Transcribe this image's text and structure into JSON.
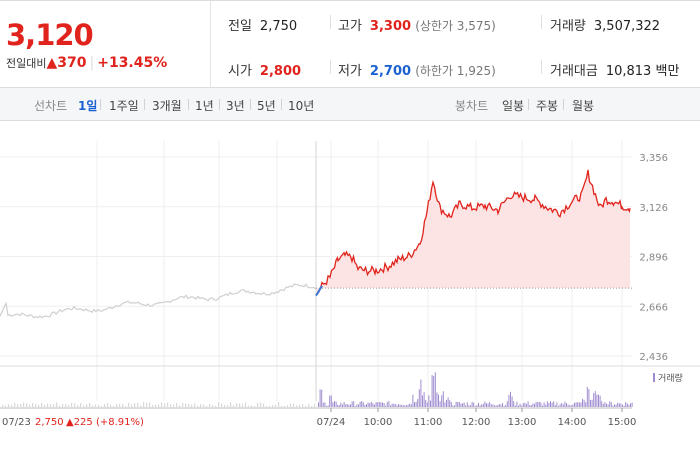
{
  "quote": {
    "price": "3,120",
    "change_label": "전일대비",
    "change_arrow": "▲",
    "change_value": "370",
    "change_pct": "+13.45%",
    "prev_close_label": "전일",
    "prev_close": "2,750",
    "open_label": "시가",
    "open": "2,800",
    "high_label": "고가",
    "high": "3,300",
    "upper_limit": "(상한가 3,575)",
    "low_label": "저가",
    "low": "2,700",
    "lower_limit": "(하한가 1,925)",
    "volume_label": "거래량",
    "volume": "3,507,322",
    "amount_label": "거래대금",
    "amount": "10,813",
    "amount_unit": "백만"
  },
  "tabs": {
    "line_label": "선차트",
    "line_periods": [
      "1일",
      "1주일",
      "3개월",
      "1년",
      "3년",
      "5년",
      "10년"
    ],
    "candle_label": "봉차트",
    "candle_periods": [
      "일봉",
      "주봉",
      "월봉"
    ],
    "active": "1일"
  },
  "chart_data": {
    "type": "line",
    "y_ticks": [
      "3,356",
      "3,126",
      "2,896",
      "2,666",
      "2,436"
    ],
    "y_range": [
      2436,
      3356
    ],
    "x_ticks": [
      "07/24",
      "10:00",
      "11:00",
      "12:00",
      "13:00",
      "14:00",
      "15:00"
    ],
    "prev_day_label": "07/23",
    "prev_day_close": "2,750",
    "prev_day_change": "▲225 (+8.91%)",
    "volume_legend": "거래량",
    "reference_price": 2750,
    "series": [
      {
        "segment": "prev_day",
        "x": [
          "07/23"
        ],
        "y_min": 2600,
        "y_max": 2760
      },
      {
        "segment": "today",
        "x": [
          "07/24 09:00",
          "10:00",
          "11:00",
          "12:00",
          "13:00",
          "14:00",
          "15:00"
        ],
        "y": [
          2720,
          2850,
          3040,
          3100,
          3170,
          3200,
          3120
        ]
      }
    ],
    "colors": {
      "up": "#e0231c",
      "area": "#fde4e4",
      "prev_line": "#cfcfcf",
      "volume": "#9f8ccf"
    }
  }
}
